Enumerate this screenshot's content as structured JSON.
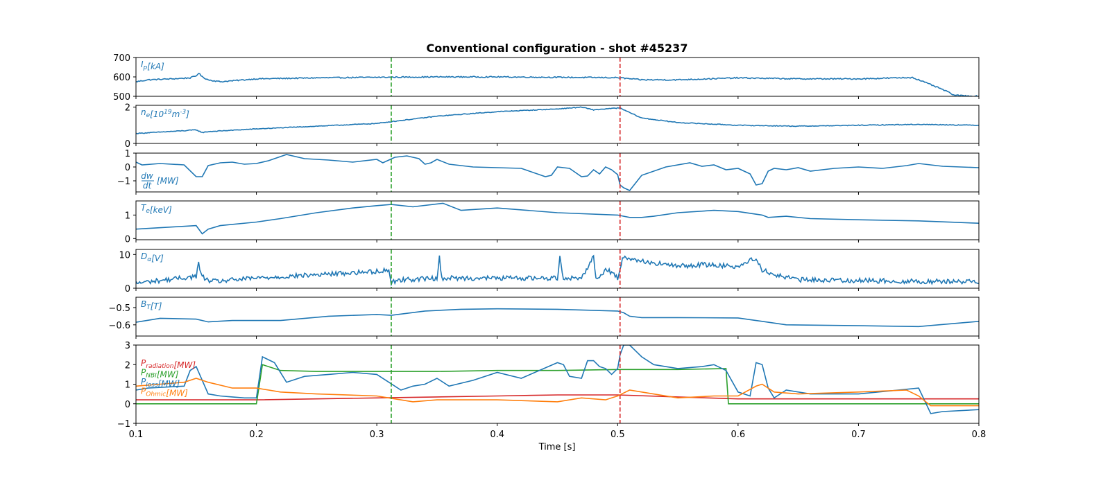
{
  "chart_data": {
    "type": "line",
    "title": "Conventional configuration - shot #45237",
    "xlabel": "Time [s]",
    "xlim": [
      0.1,
      0.8
    ],
    "xticks": [
      "0.1",
      "0.2",
      "0.3",
      "0.4",
      "0.5",
      "0.6",
      "0.7",
      "0.8"
    ],
    "vlines": [
      {
        "x": 0.312,
        "color": "#2ca02c",
        "style": "dashed"
      },
      {
        "x": 0.502,
        "color": "#d62728",
        "style": "dashed"
      }
    ],
    "panels": [
      {
        "id": "ip",
        "label": {
          "base": "I",
          "sub": "p",
          "unit": "[kA]"
        },
        "ylim": [
          500,
          700
        ],
        "yticks": [
          "500",
          "600",
          "700"
        ],
        "series": [
          {
            "color": "#1f77b4",
            "noise": 3,
            "x": [
              0.1,
              0.11,
              0.13,
              0.145,
              0.15,
              0.152,
              0.155,
              0.16,
              0.17,
              0.18,
              0.2,
              0.25,
              0.3,
              0.35,
              0.4,
              0.45,
              0.5,
              0.52,
              0.55,
              0.6,
              0.65,
              0.7,
              0.745,
              0.75,
              0.76,
              0.77,
              0.78,
              0.8
            ],
            "y": [
              575,
              585,
              590,
              595,
              605,
              620,
              600,
              585,
              575,
              580,
              590,
              595,
              598,
              600,
              600,
              598,
              596,
              585,
              585,
              595,
              590,
              590,
              597,
              585,
              560,
              535,
              505,
              500
            ]
          }
        ]
      },
      {
        "id": "ne",
        "label": {
          "base": "n",
          "sub": "e",
          "unit": "[10",
          "sup": "19",
          "unit2": "m",
          "sup2": "-3",
          "unit3": "]"
        },
        "ylim": [
          0,
          2.1
        ],
        "yticks": [
          "0",
          "2"
        ],
        "series": [
          {
            "color": "#1f77b4",
            "noise": 0.02,
            "x": [
              0.1,
              0.14,
              0.15,
              0.155,
              0.16,
              0.2,
              0.25,
              0.3,
              0.312,
              0.35,
              0.4,
              0.45,
              0.47,
              0.48,
              0.49,
              0.5,
              0.502,
              0.51,
              0.52,
              0.55,
              0.6,
              0.65,
              0.7,
              0.75,
              0.8
            ],
            "y": [
              0.55,
              0.7,
              0.75,
              0.6,
              0.65,
              0.8,
              0.95,
              1.1,
              1.2,
              1.5,
              1.75,
              1.9,
              2.0,
              1.85,
              1.9,
              1.95,
              1.95,
              1.7,
              1.4,
              1.15,
              1.0,
              0.95,
              1.0,
              1.05,
              1.0
            ]
          }
        ]
      },
      {
        "id": "dwdt",
        "label": {
          "frac_num": "dw",
          "frac_den": "dt",
          "unit": "[MW]",
          "position": "bottom"
        },
        "ylim": [
          -1.8,
          1.0
        ],
        "yticks": [
          "1",
          "0",
          "−1"
        ],
        "ytick_values": [
          1,
          0,
          -1
        ],
        "series": [
          {
            "color": "#1f77b4",
            "noise": 0,
            "x": [
              0.1,
              0.105,
              0.12,
              0.14,
              0.15,
              0.155,
              0.16,
              0.17,
              0.18,
              0.19,
              0.2,
              0.21,
              0.225,
              0.24,
              0.26,
              0.28,
              0.3,
              0.305,
              0.31,
              0.315,
              0.325,
              0.335,
              0.34,
              0.345,
              0.35,
              0.36,
              0.38,
              0.4,
              0.42,
              0.44,
              0.445,
              0.45,
              0.455,
              0.46,
              0.47,
              0.475,
              0.48,
              0.485,
              0.49,
              0.495,
              0.5,
              0.502,
              0.505,
              0.51,
              0.52,
              0.54,
              0.56,
              0.57,
              0.58,
              0.59,
              0.6,
              0.61,
              0.615,
              0.62,
              0.625,
              0.63,
              0.64,
              0.65,
              0.66,
              0.68,
              0.7,
              0.72,
              0.74,
              0.75,
              0.77,
              0.8
            ],
            "y": [
              0.35,
              0.15,
              0.25,
              0.15,
              -0.7,
              -0.7,
              0.1,
              0.3,
              0.35,
              0.2,
              0.25,
              0.45,
              0.9,
              0.6,
              0.5,
              0.35,
              0.55,
              0.3,
              0.5,
              0.7,
              0.8,
              0.6,
              0.2,
              0.3,
              0.55,
              0.2,
              0.0,
              -0.05,
              -0.1,
              -0.7,
              -0.6,
              0.0,
              -0.05,
              -0.1,
              -0.7,
              -0.65,
              -0.2,
              -0.5,
              0.0,
              -0.2,
              -0.55,
              -1.3,
              -1.5,
              -1.7,
              -0.6,
              0.0,
              0.3,
              0.05,
              0.15,
              -0.2,
              -0.1,
              -0.5,
              -1.3,
              -1.2,
              -0.3,
              -0.1,
              -0.2,
              -0.05,
              -0.3,
              -0.1,
              0.0,
              -0.1,
              0.1,
              0.25,
              0.05,
              -0.05
            ]
          }
        ]
      },
      {
        "id": "te",
        "label": {
          "base": "T",
          "sub": "e",
          "unit": "[keV]"
        },
        "ylim": [
          -0.05,
          1.6
        ],
        "yticks": [
          "0",
          "1"
        ],
        "ytick_values": [
          0,
          1
        ],
        "series": [
          {
            "color": "#1f77b4",
            "noise": 0,
            "x": [
              0.1,
              0.15,
              0.155,
              0.16,
              0.17,
              0.2,
              0.22,
              0.25,
              0.28,
              0.3,
              0.312,
              0.33,
              0.355,
              0.37,
              0.4,
              0.45,
              0.5,
              0.51,
              0.52,
              0.53,
              0.55,
              0.58,
              0.6,
              0.62,
              0.625,
              0.64,
              0.66,
              0.7,
              0.75,
              0.8
            ],
            "y": [
              0.4,
              0.55,
              0.2,
              0.4,
              0.55,
              0.7,
              0.85,
              1.1,
              1.3,
              1.4,
              1.45,
              1.35,
              1.5,
              1.2,
              1.3,
              1.1,
              1.0,
              0.9,
              0.9,
              0.95,
              1.1,
              1.2,
              1.15,
              1.0,
              0.9,
              0.95,
              0.85,
              0.8,
              0.75,
              0.65
            ]
          }
        ]
      },
      {
        "id": "da",
        "label": {
          "base": "D",
          "sub": "α",
          "unit": "[V]"
        },
        "ylim": [
          0,
          11.5
        ],
        "yticks": [
          "0",
          "10"
        ],
        "ytick_values": [
          0,
          10
        ],
        "series": [
          {
            "color": "#1f77b4",
            "noise": 0.7,
            "x": [
              0.1,
              0.15,
              0.152,
              0.154,
              0.158,
              0.165,
              0.2,
              0.25,
              0.3,
              0.31,
              0.312,
              0.314,
              0.32,
              0.35,
              0.352,
              0.354,
              0.4,
              0.45,
              0.452,
              0.455,
              0.47,
              0.48,
              0.482,
              0.485,
              0.49,
              0.5,
              0.502,
              0.505,
              0.51,
              0.52,
              0.55,
              0.57,
              0.6,
              0.615,
              0.62,
              0.63,
              0.65,
              0.7,
              0.75,
              0.8
            ],
            "y": [
              1.5,
              3.5,
              7.5,
              4.0,
              2.5,
              2.0,
              3.0,
              4.0,
              5.0,
              5.5,
              1.5,
              2.0,
              2.5,
              3.0,
              9.0,
              3.0,
              3.0,
              3.0,
              9.5,
              3.0,
              3.0,
              9.5,
              3.0,
              3.0,
              6.0,
              3.0,
              6.0,
              9.5,
              9.0,
              8.0,
              6.5,
              7.0,
              6.5,
              9.0,
              5.5,
              4.0,
              2.5,
              2.3,
              2.0,
              2.0
            ]
          }
        ]
      },
      {
        "id": "bt",
        "label": {
          "base": "B",
          "sub": "T",
          "unit": "[T]"
        },
        "ylim": [
          -0.665,
          -0.44
        ],
        "yticks": [
          "−0.5",
          "−0.6"
        ],
        "ytick_values": [
          -0.5,
          -0.6
        ],
        "series": [
          {
            "color": "#1f77b4",
            "noise": 0,
            "x": [
              0.1,
              0.12,
              0.15,
              0.16,
              0.18,
              0.22,
              0.26,
              0.3,
              0.312,
              0.34,
              0.37,
              0.4,
              0.45,
              0.5,
              0.505,
              0.51,
              0.52,
              0.55,
              0.6,
              0.62,
              0.64,
              0.7,
              0.75,
              0.8
            ],
            "y": [
              -0.585,
              -0.562,
              -0.567,
              -0.583,
              -0.575,
              -0.575,
              -0.55,
              -0.54,
              -0.545,
              -0.52,
              -0.51,
              -0.507,
              -0.51,
              -0.52,
              -0.53,
              -0.55,
              -0.558,
              -0.558,
              -0.56,
              -0.58,
              -0.6,
              -0.605,
              -0.61,
              -0.58
            ]
          }
        ]
      },
      {
        "id": "power",
        "ylim": [
          -1,
          3
        ],
        "yticks": [
          "−1",
          "0",
          "1",
          "2",
          "3"
        ],
        "ytick_values": [
          -1,
          0,
          1,
          2,
          3
        ],
        "legend_labels": [
          {
            "base": "P",
            "sub": "radiation",
            "unit": "[MW]",
            "color": "#d62728"
          },
          {
            "base": "P",
            "sub": "NBI",
            "unit": "[MW]",
            "color": "#2ca02c"
          },
          {
            "base": "P",
            "sub": "loss",
            "unit": "[MW]",
            "color": "#1f77b4"
          },
          {
            "base": "P",
            "sub": "Ohmic",
            "unit": "[MW]",
            "color": "#ff7f0e"
          }
        ],
        "series": [
          {
            "name": "P_radiation",
            "color": "#d62728",
            "noise": 0,
            "x": [
              0.1,
              0.2,
              0.3,
              0.35,
              0.4,
              0.45,
              0.5,
              0.55,
              0.6,
              0.7,
              0.8
            ],
            "y": [
              0.2,
              0.2,
              0.3,
              0.35,
              0.4,
              0.45,
              0.45,
              0.35,
              0.25,
              0.25,
              0.25
            ]
          },
          {
            "name": "P_NBI",
            "color": "#2ca02c",
            "noise": 0,
            "x": [
              0.1,
              0.2,
              0.205,
              0.22,
              0.25,
              0.3,
              0.35,
              0.4,
              0.45,
              0.5,
              0.55,
              0.59,
              0.592,
              0.6,
              0.7,
              0.8
            ],
            "y": [
              0.0,
              0.0,
              2.0,
              1.7,
              1.65,
              1.65,
              1.65,
              1.7,
              1.7,
              1.75,
              1.75,
              1.8,
              0.0,
              0.0,
              0.0,
              0.0
            ]
          },
          {
            "name": "P_loss",
            "color": "#1f77b4",
            "noise": 0,
            "x": [
              0.1,
              0.11,
              0.14,
              0.145,
              0.15,
              0.155,
              0.16,
              0.17,
              0.18,
              0.19,
              0.2,
              0.205,
              0.215,
              0.225,
              0.24,
              0.26,
              0.28,
              0.3,
              0.31,
              0.32,
              0.33,
              0.34,
              0.35,
              0.36,
              0.38,
              0.4,
              0.42,
              0.45,
              0.455,
              0.46,
              0.47,
              0.475,
              0.48,
              0.485,
              0.49,
              0.495,
              0.5,
              0.502,
              0.505,
              0.51,
              0.52,
              0.53,
              0.55,
              0.57,
              0.58,
              0.59,
              0.6,
              0.61,
              0.615,
              0.62,
              0.625,
              0.63,
              0.64,
              0.66,
              0.7,
              0.75,
              0.76,
              0.77,
              0.8
            ],
            "y": [
              0.7,
              0.8,
              0.9,
              1.7,
              1.9,
              1.2,
              0.5,
              0.4,
              0.35,
              0.3,
              0.3,
              2.4,
              2.1,
              1.1,
              1.4,
              1.5,
              1.6,
              1.5,
              1.1,
              0.7,
              0.9,
              1.0,
              1.3,
              0.9,
              1.2,
              1.6,
              1.3,
              2.1,
              2.0,
              1.4,
              1.3,
              2.2,
              2.2,
              1.9,
              1.8,
              1.5,
              1.8,
              2.5,
              3.0,
              3.0,
              2.4,
              2.0,
              1.8,
              1.9,
              2.0,
              1.7,
              0.6,
              0.4,
              2.1,
              2.0,
              0.8,
              0.3,
              0.7,
              0.5,
              0.5,
              0.8,
              -0.5,
              -0.4,
              -0.3
            ]
          },
          {
            "name": "P_Ohmic",
            "color": "#ff7f0e",
            "noise": 0,
            "x": [
              0.1,
              0.12,
              0.14,
              0.15,
              0.16,
              0.18,
              0.2,
              0.22,
              0.25,
              0.3,
              0.31,
              0.33,
              0.35,
              0.4,
              0.45,
              0.47,
              0.49,
              0.5,
              0.505,
              0.51,
              0.52,
              0.55,
              0.58,
              0.6,
              0.615,
              0.62,
              0.63,
              0.65,
              0.7,
              0.74,
              0.75,
              0.76,
              0.77,
              0.8
            ],
            "y": [
              0.9,
              1.0,
              1.1,
              1.3,
              1.1,
              0.8,
              0.8,
              0.6,
              0.5,
              0.4,
              0.3,
              0.1,
              0.2,
              0.2,
              0.1,
              0.3,
              0.2,
              0.4,
              0.55,
              0.7,
              0.6,
              0.3,
              0.4,
              0.4,
              0.9,
              1.0,
              0.6,
              0.5,
              0.6,
              0.7,
              0.4,
              -0.1,
              -0.1,
              -0.1
            ]
          }
        ]
      }
    ]
  }
}
